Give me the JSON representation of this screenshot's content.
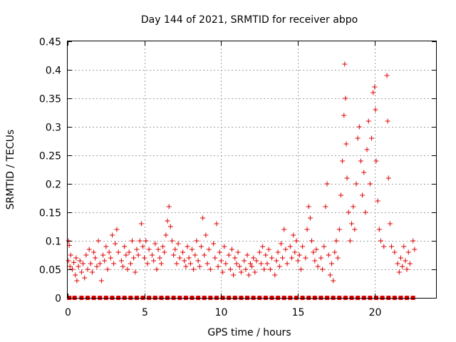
{
  "chart_data": {
    "type": "scatter",
    "title": "Day 144 of 2021, SRMTID for receiver abpo",
    "xlabel": "GPS time / hours",
    "ylabel": "SRMTID / TECUs",
    "xlim": [
      0,
      24
    ],
    "ylim": [
      0,
      0.45
    ],
    "grid": true,
    "marker": "plus",
    "color": "#e00000",
    "x_ticks": [
      0,
      5,
      10,
      15,
      20
    ],
    "x_tick_labels": [
      "0",
      "5",
      "10",
      "15",
      "20"
    ],
    "y_ticks": [
      0,
      0.05,
      0.1,
      0.15,
      0.2,
      0.25,
      0.3,
      0.35,
      0.4,
      0.45
    ],
    "y_tick_labels": [
      "0",
      "0.05",
      "0.1",
      "0.15",
      "0.2",
      "0.25",
      "0.3",
      "0.35",
      "0.4",
      "0.45"
    ],
    "series": [
      {
        "name": "SRMTID",
        "points": [
          [
            0.05,
            0.1
          ],
          [
            0.05,
            0.065
          ],
          [
            0.1,
            0.092
          ],
          [
            0.15,
            0.055
          ],
          [
            0.2,
            0.075
          ],
          [
            0.3,
            0.05
          ],
          [
            0.4,
            0.062
          ],
          [
            0.5,
            0.04
          ],
          [
            0.55,
            0.07
          ],
          [
            0.6,
            0.03
          ],
          [
            0.7,
            0.055
          ],
          [
            0.8,
            0.065
          ],
          [
            0.9,
            0.045
          ],
          [
            1.0,
            0.06
          ],
          [
            1.1,
            0.035
          ],
          [
            1.2,
            0.075
          ],
          [
            1.3,
            0.05
          ],
          [
            1.4,
            0.085
          ],
          [
            1.5,
            0.06
          ],
          [
            1.6,
            0.045
          ],
          [
            1.7,
            0.08
          ],
          [
            1.8,
            0.07
          ],
          [
            1.9,
            0.055
          ],
          [
            2.0,
            0.1
          ],
          [
            2.1,
            0.06
          ],
          [
            2.2,
            0.03
          ],
          [
            2.3,
            0.075
          ],
          [
            2.4,
            0.065
          ],
          [
            2.5,
            0.09
          ],
          [
            2.6,
            0.05
          ],
          [
            2.7,
            0.08
          ],
          [
            2.8,
            0.07
          ],
          [
            2.9,
            0.11
          ],
          [
            3.0,
            0.06
          ],
          [
            3.1,
            0.095
          ],
          [
            3.2,
            0.12
          ],
          [
            3.3,
            0.08
          ],
          [
            3.5,
            0.065
          ],
          [
            3.6,
            0.055
          ],
          [
            3.7,
            0.09
          ],
          [
            3.8,
            0.075
          ],
          [
            3.9,
            0.05
          ],
          [
            4.0,
            0.08
          ],
          [
            4.1,
            0.06
          ],
          [
            4.2,
            0.1
          ],
          [
            4.3,
            0.07
          ],
          [
            4.4,
            0.045
          ],
          [
            4.5,
            0.085
          ],
          [
            4.6,
            0.075
          ],
          [
            4.7,
            0.1
          ],
          [
            4.8,
            0.13
          ],
          [
            4.9,
            0.09
          ],
          [
            5.0,
            0.07
          ],
          [
            5.1,
            0.1
          ],
          [
            5.2,
            0.06
          ],
          [
            5.3,
            0.085
          ],
          [
            5.5,
            0.075
          ],
          [
            5.6,
            0.065
          ],
          [
            5.7,
            0.095
          ],
          [
            5.8,
            0.05
          ],
          [
            5.9,
            0.085
          ],
          [
            6.0,
            0.07
          ],
          [
            6.1,
            0.06
          ],
          [
            6.2,
            0.09
          ],
          [
            6.3,
            0.08
          ],
          [
            6.4,
            0.11
          ],
          [
            6.5,
            0.135
          ],
          [
            6.6,
            0.16
          ],
          [
            6.7,
            0.125
          ],
          [
            6.8,
            0.1
          ],
          [
            6.9,
            0.075
          ],
          [
            7.0,
            0.085
          ],
          [
            7.1,
            0.06
          ],
          [
            7.2,
            0.095
          ],
          [
            7.3,
            0.07
          ],
          [
            7.5,
            0.08
          ],
          [
            7.6,
            0.065
          ],
          [
            7.7,
            0.055
          ],
          [
            7.8,
            0.09
          ],
          [
            7.9,
            0.07
          ],
          [
            8.0,
            0.06
          ],
          [
            8.1,
            0.085
          ],
          [
            8.2,
            0.05
          ],
          [
            8.3,
            0.075
          ],
          [
            8.4,
            0.1
          ],
          [
            8.5,
            0.065
          ],
          [
            8.6,
            0.055
          ],
          [
            8.7,
            0.09
          ],
          [
            8.8,
            0.14
          ],
          [
            8.9,
            0.075
          ],
          [
            9.0,
            0.11
          ],
          [
            9.1,
            0.06
          ],
          [
            9.2,
            0.085
          ],
          [
            9.3,
            0.05
          ],
          [
            9.5,
            0.095
          ],
          [
            9.6,
            0.07
          ],
          [
            9.7,
            0.13
          ],
          [
            9.8,
            0.055
          ],
          [
            9.9,
            0.08
          ],
          [
            10.0,
            0.065
          ],
          [
            10.1,
            0.045
          ],
          [
            10.2,
            0.09
          ],
          [
            10.3,
            0.06
          ],
          [
            10.5,
            0.075
          ],
          [
            10.6,
            0.05
          ],
          [
            10.7,
            0.085
          ],
          [
            10.8,
            0.04
          ],
          [
            10.9,
            0.07
          ],
          [
            11.0,
            0.06
          ],
          [
            11.1,
            0.08
          ],
          [
            11.2,
            0.055
          ],
          [
            11.3,
            0.045
          ],
          [
            11.5,
            0.065
          ],
          [
            11.6,
            0.05
          ],
          [
            11.7,
            0.075
          ],
          [
            11.8,
            0.04
          ],
          [
            11.9,
            0.06
          ],
          [
            12.0,
            0.055
          ],
          [
            12.1,
            0.07
          ],
          [
            12.2,
            0.045
          ],
          [
            12.3,
            0.065
          ],
          [
            12.5,
            0.08
          ],
          [
            12.6,
            0.06
          ],
          [
            12.7,
            0.09
          ],
          [
            12.8,
            0.05
          ],
          [
            12.9,
            0.075
          ],
          [
            13.0,
            0.06
          ],
          [
            13.1,
            0.085
          ],
          [
            13.2,
            0.05
          ],
          [
            13.3,
            0.07
          ],
          [
            13.5,
            0.04
          ],
          [
            13.6,
            0.065
          ],
          [
            13.7,
            0.08
          ],
          [
            13.8,
            0.055
          ],
          [
            13.9,
            0.095
          ],
          [
            14.0,
            0.07
          ],
          [
            14.1,
            0.12
          ],
          [
            14.2,
            0.085
          ],
          [
            14.3,
            0.06
          ],
          [
            14.5,
            0.09
          ],
          [
            14.6,
            0.07
          ],
          [
            14.7,
            0.11
          ],
          [
            14.8,
            0.08
          ],
          [
            14.9,
            0.1
          ],
          [
            15.0,
            0.065
          ],
          [
            15.1,
            0.075
          ],
          [
            15.2,
            0.05
          ],
          [
            15.3,
            0.09
          ],
          [
            15.5,
            0.07
          ],
          [
            15.6,
            0.12
          ],
          [
            15.7,
            0.16
          ],
          [
            15.8,
            0.14
          ],
          [
            15.9,
            0.1
          ],
          [
            16.0,
            0.08
          ],
          [
            16.1,
            0.065
          ],
          [
            16.2,
            0.085
          ],
          [
            16.3,
            0.055
          ],
          [
            16.5,
            0.07
          ],
          [
            16.6,
            0.05
          ],
          [
            16.7,
            0.09
          ],
          [
            16.8,
            0.16
          ],
          [
            16.9,
            0.2
          ],
          [
            17.0,
            0.075
          ],
          [
            17.1,
            0.04
          ],
          [
            17.2,
            0.06
          ],
          [
            17.3,
            0.03
          ],
          [
            17.4,
            0.08
          ],
          [
            17.5,
            0.1
          ],
          [
            17.6,
            0.07
          ],
          [
            17.7,
            0.12
          ],
          [
            17.8,
            0.18
          ],
          [
            17.9,
            0.24
          ],
          [
            18.0,
            0.32
          ],
          [
            18.05,
            0.41
          ],
          [
            18.1,
            0.35
          ],
          [
            18.15,
            0.27
          ],
          [
            18.2,
            0.21
          ],
          [
            18.3,
            0.15
          ],
          [
            18.4,
            0.1
          ],
          [
            18.5,
            0.13
          ],
          [
            18.6,
            0.16
          ],
          [
            18.7,
            0.12
          ],
          [
            18.8,
            0.2
          ],
          [
            18.9,
            0.28
          ],
          [
            19.0,
            0.3
          ],
          [
            19.1,
            0.24
          ],
          [
            19.2,
            0.18
          ],
          [
            19.3,
            0.22
          ],
          [
            19.4,
            0.15
          ],
          [
            19.5,
            0.26
          ],
          [
            19.6,
            0.31
          ],
          [
            19.7,
            0.2
          ],
          [
            19.8,
            0.28
          ],
          [
            19.9,
            0.36
          ],
          [
            20.0,
            0.37
          ],
          [
            20.05,
            0.33
          ],
          [
            20.1,
            0.24
          ],
          [
            20.2,
            0.17
          ],
          [
            20.3,
            0.12
          ],
          [
            20.4,
            0.1
          ],
          [
            20.6,
            0.09
          ],
          [
            20.8,
            0.39
          ],
          [
            20.85,
            0.31
          ],
          [
            20.9,
            0.21
          ],
          [
            21.0,
            0.13
          ],
          [
            21.1,
            0.09
          ],
          [
            21.3,
            0.08
          ],
          [
            21.5,
            0.06
          ],
          [
            21.6,
            0.045
          ],
          [
            21.7,
            0.07
          ],
          [
            21.8,
            0.055
          ],
          [
            21.9,
            0.09
          ],
          [
            22.0,
            0.065
          ],
          [
            22.1,
            0.05
          ],
          [
            22.2,
            0.08
          ],
          [
            22.3,
            0.06
          ],
          [
            22.5,
            0.1
          ],
          [
            22.6,
            0.085
          ]
        ]
      }
    ],
    "zero_x": [
      0.1,
      0.45,
      0.9,
      1.3,
      1.7,
      2.1,
      2.5,
      2.9,
      3.3,
      3.7,
      4.1,
      4.5,
      4.9,
      5.3,
      5.7,
      6.1,
      6.5,
      6.9,
      7.3,
      7.7,
      8.1,
      8.5,
      8.9,
      9.3,
      9.7,
      10.1,
      10.5,
      10.9,
      11.3,
      11.7,
      12.1,
      12.5,
      12.9,
      13.3,
      13.7,
      14.1,
      14.5,
      14.9,
      15.3,
      15.7,
      16.1,
      16.5,
      16.9,
      17.3,
      17.7,
      18.1,
      18.5,
      18.9,
      19.3,
      19.7,
      20.1,
      20.5,
      20.9,
      21.3,
      21.7,
      22.1,
      22.5
    ]
  }
}
